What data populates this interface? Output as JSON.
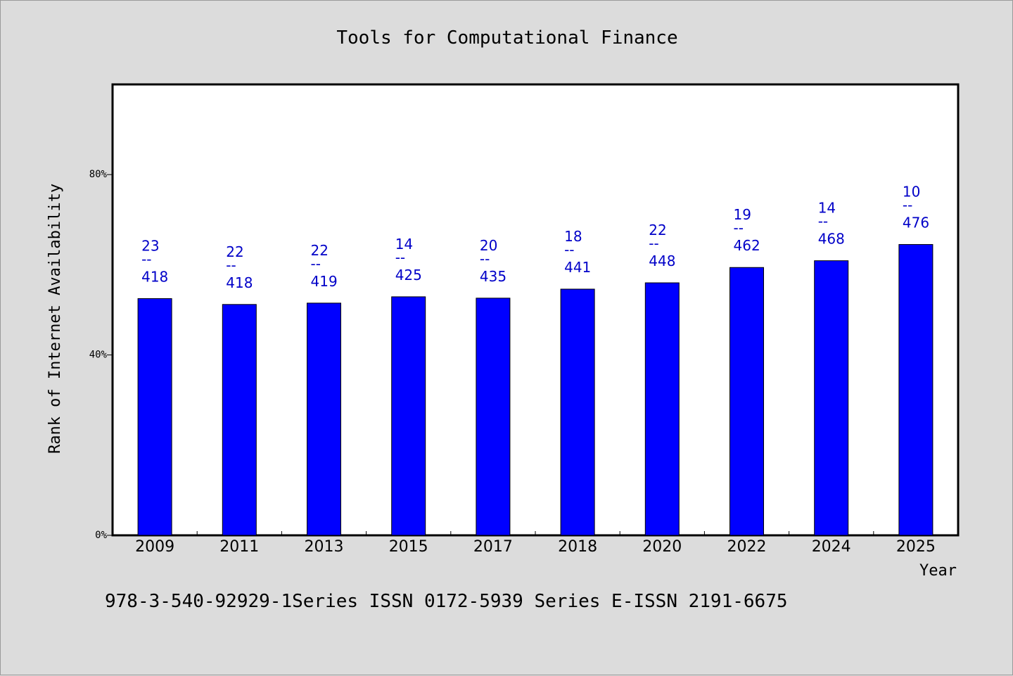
{
  "chart_data": {
    "type": "bar",
    "title": "Tools for Computational Finance",
    "xlabel": "Year",
    "ylabel": "Rank of Internet Availability",
    "categories": [
      "2009",
      "2011",
      "2013",
      "2015",
      "2017",
      "2018",
      "2020",
      "2022",
      "2024",
      "2025"
    ],
    "values": [
      52.5,
      51.2,
      51.5,
      52.9,
      52.6,
      54.6,
      56.0,
      59.4,
      60.9,
      64.5
    ],
    "value_unit": "%",
    "ylim": [
      0,
      100
    ],
    "yticks": [
      0,
      40,
      80
    ],
    "ytick_labels": [
      "0%",
      "40%",
      "80%"
    ],
    "grid": false,
    "legend": "none",
    "bar_color": "#0000ff",
    "label_color": "#0000c8",
    "data_labels": [
      {
        "top": "23",
        "sep": "--",
        "bottom": "418"
      },
      {
        "top": "22",
        "sep": "--",
        "bottom": "418"
      },
      {
        "top": "22",
        "sep": "--",
        "bottom": "419"
      },
      {
        "top": "14",
        "sep": "--",
        "bottom": "425"
      },
      {
        "top": "20",
        "sep": "--",
        "bottom": "435"
      },
      {
        "top": "18",
        "sep": "--",
        "bottom": "441"
      },
      {
        "top": "22",
        "sep": "--",
        "bottom": "448"
      },
      {
        "top": "19",
        "sep": "--",
        "bottom": "462"
      },
      {
        "top": "14",
        "sep": "--",
        "bottom": "468"
      },
      {
        "top": "10",
        "sep": "--",
        "bottom": "476"
      }
    ]
  },
  "footer": {
    "text": "978-3-540-92929-1Series ISSN 0172-5939 Series E-ISSN 2191-6675"
  }
}
